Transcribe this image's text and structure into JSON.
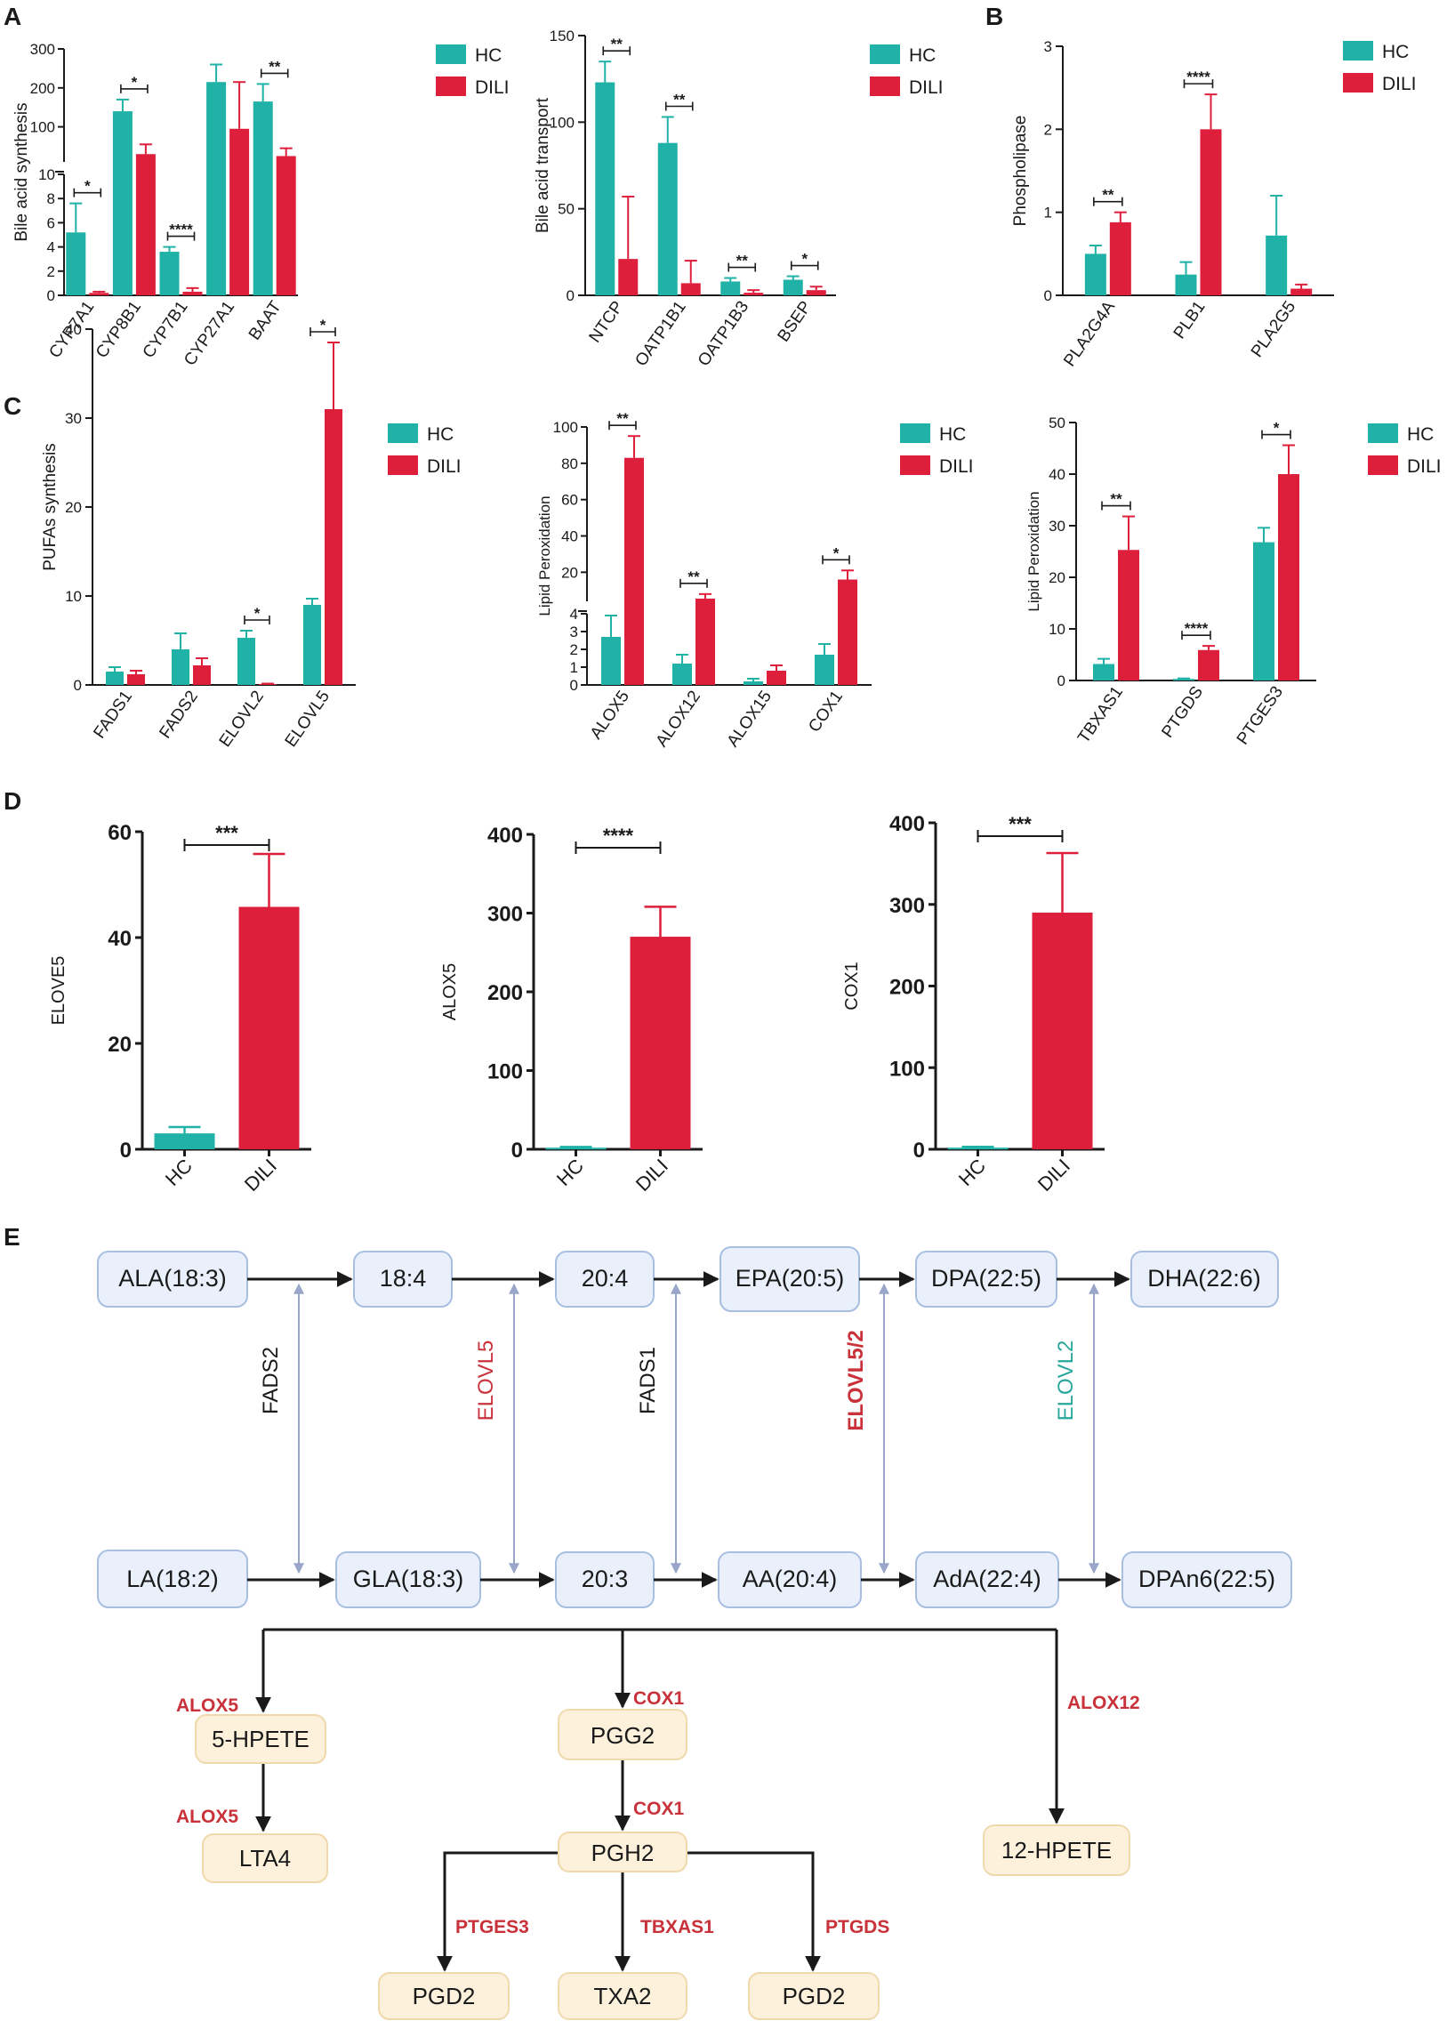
{
  "colors": {
    "hc": "#20b2a6",
    "dili": "#de1f3c",
    "ink": "#1a1a1a",
    "enzyme_red": "#c9323a",
    "enzyme_teal": "#27a79b",
    "bidir": "#9aa6c9"
  },
  "panel_labels": [
    "A",
    "B",
    "C",
    "D",
    "E"
  ],
  "legend": {
    "hc": "HC",
    "dili": "DILI"
  },
  "chart_data": [
    {
      "id": "a1",
      "type": "bar",
      "panel": "A",
      "ylabel": "Bile acid synthesis",
      "categories": [
        "CYP7A1",
        "CYP8B1",
        "CYP7B1",
        "CYP27A1",
        "BAAT"
      ],
      "series": [
        {
          "name": "HC",
          "values": [
            5.2,
            140,
            3.6,
            215,
            165
          ],
          "errors": [
            2.4,
            30,
            0.4,
            45,
            45
          ]
        },
        {
          "name": "DILI",
          "values": [
            0.2,
            30,
            0.3,
            95,
            25
          ],
          "errors": [
            0.1,
            25,
            0.3,
            120,
            20
          ]
        }
      ],
      "broken_axis": {
        "lower": [
          0,
          10
        ],
        "upper": [
          10,
          300
        ]
      },
      "lower_ticks": [
        0,
        2,
        4,
        6,
        8,
        10
      ],
      "upper_ticks": [
        100,
        200,
        300
      ],
      "significance": [
        {
          "index": 0,
          "mark": "*"
        },
        {
          "index": 1,
          "mark": "*"
        },
        {
          "index": 2,
          "mark": "****"
        },
        {
          "index": 4,
          "mark": "**"
        }
      ]
    },
    {
      "id": "a2",
      "type": "bar",
      "panel": "A",
      "ylabel": "Bile acid transport",
      "categories": [
        "NTCP",
        "OATP1B1",
        "OATP1B3",
        "BSEP"
      ],
      "series": [
        {
          "name": "HC",
          "values": [
            123,
            88,
            8,
            9
          ],
          "errors": [
            12,
            15,
            2,
            2
          ]
        },
        {
          "name": "DILI",
          "values": [
            21,
            7,
            1.5,
            3
          ],
          "errors": [
            36,
            13,
            1.5,
            2
          ]
        }
      ],
      "ylim": [
        0,
        150
      ],
      "ticks": [
        0,
        50,
        100,
        150
      ],
      "significance": [
        {
          "index": 0,
          "mark": "**"
        },
        {
          "index": 1,
          "mark": "**"
        },
        {
          "index": 2,
          "mark": "**"
        },
        {
          "index": 3,
          "mark": "*"
        }
      ]
    },
    {
      "id": "b",
      "type": "bar",
      "panel": "B",
      "ylabel": "Phospholipase",
      "categories": [
        "PLA2G4A",
        "PLB1",
        "PLA2G5"
      ],
      "series": [
        {
          "name": "HC",
          "values": [
            0.5,
            0.25,
            0.72
          ],
          "errors": [
            0.1,
            0.15,
            0.48
          ]
        },
        {
          "name": "DILI",
          "values": [
            0.88,
            2.0,
            0.08
          ],
          "errors": [
            0.12,
            0.42,
            0.05
          ]
        }
      ],
      "ylim": [
        0,
        3
      ],
      "ticks": [
        0,
        1,
        2,
        3
      ],
      "significance": [
        {
          "index": 0,
          "mark": "**"
        },
        {
          "index": 1,
          "mark": "****"
        }
      ]
    },
    {
      "id": "c1",
      "type": "bar",
      "panel": "C",
      "ylabel": "PUFAs synthesis",
      "categories": [
        "FADS1",
        "FADS2",
        "ELOVL2",
        "ELOVL5"
      ],
      "series": [
        {
          "name": "HC",
          "values": [
            1.5,
            4.0,
            5.3,
            9.0
          ],
          "errors": [
            0.5,
            1.8,
            0.8,
            0.7
          ]
        },
        {
          "name": "DILI",
          "values": [
            1.2,
            2.2,
            0.1,
            31
          ],
          "errors": [
            0.4,
            0.8,
            0.05,
            7.5
          ]
        }
      ],
      "ylim": [
        0,
        40
      ],
      "ticks": [
        0,
        10,
        20,
        30,
        40
      ],
      "significance": [
        {
          "index": 2,
          "mark": "*"
        },
        {
          "index": 3,
          "mark": "*"
        }
      ]
    },
    {
      "id": "c2",
      "type": "bar",
      "panel": "C",
      "ylabel": "Lipid Peroxidation",
      "categories": [
        "ALOX5",
        "ALOX12",
        "ALOX15",
        "COX1"
      ],
      "series": [
        {
          "name": "HC",
          "values": [
            2.7,
            1.2,
            0.2,
            1.7
          ],
          "errors": [
            1.2,
            0.5,
            0.15,
            0.6
          ]
        },
        {
          "name": "DILI",
          "values": [
            83,
            5.5,
            0.8,
            16
          ],
          "errors": [
            12,
            2.5,
            0.3,
            5
          ]
        }
      ],
      "broken_axis": {
        "lower": [
          0,
          4
        ],
        "upper": [
          4,
          100
        ]
      },
      "lower_ticks": [
        0,
        1,
        2,
        3,
        4
      ],
      "upper_ticks": [
        20,
        40,
        60,
        80,
        100
      ],
      "significance": [
        {
          "index": 0,
          "mark": "**"
        },
        {
          "index": 1,
          "mark": "**"
        },
        {
          "index": 3,
          "mark": "*"
        }
      ]
    },
    {
      "id": "c3",
      "type": "bar",
      "panel": "C",
      "ylabel": "Lipid Peroxidation",
      "categories": [
        "TBXAS1",
        "PTGDS",
        "PTGES3"
      ],
      "series": [
        {
          "name": "HC",
          "values": [
            3.2,
            0.3,
            26.8
          ],
          "errors": [
            1.0,
            0.1,
            2.8
          ]
        },
        {
          "name": "DILI",
          "values": [
            25.3,
            5.9,
            40
          ],
          "errors": [
            6.5,
            0.8,
            5.6
          ]
        }
      ],
      "ylim": [
        0,
        50
      ],
      "ticks": [
        0,
        10,
        20,
        30,
        40,
        50
      ],
      "significance": [
        {
          "index": 0,
          "mark": "**"
        },
        {
          "index": 1,
          "mark": "****"
        },
        {
          "index": 2,
          "mark": "*"
        }
      ]
    },
    {
      "id": "d1",
      "type": "bar",
      "panel": "D",
      "ylabel": "ELOVE5",
      "categories": [
        "HC",
        "DILI"
      ],
      "values": [
        3,
        45.8
      ],
      "errors": [
        1.2,
        10
      ],
      "ylim": [
        0,
        60
      ],
      "ticks": [
        0,
        20,
        40,
        60
      ],
      "significance_mark": "***"
    },
    {
      "id": "d2",
      "type": "bar",
      "panel": "D",
      "ylabel": "ALOX5",
      "categories": [
        "HC",
        "DILI"
      ],
      "values": [
        2,
        270
      ],
      "errors": [
        1,
        38
      ],
      "ylim": [
        0,
        400
      ],
      "ticks": [
        0,
        100,
        200,
        300,
        400
      ],
      "significance_mark": "****"
    },
    {
      "id": "d3",
      "type": "bar",
      "panel": "D",
      "ylabel": "COX1",
      "categories": [
        "HC",
        "DILI"
      ],
      "values": [
        2,
        290
      ],
      "errors": [
        1,
        73
      ],
      "ylim": [
        0,
        400
      ],
      "ticks": [
        0,
        100,
        200,
        300,
        400
      ],
      "significance_mark": "***"
    }
  ],
  "pathway": {
    "top_row": [
      "ALA(18:3)",
      "18:4",
      "20:4",
      "EPA(20:5)",
      "DPA(22:5)",
      "DHA(22:6)"
    ],
    "bottom_row": [
      "LA(18:2)",
      "GLA(18:3)",
      "20:3",
      "AA(20:4)",
      "AdA(22:4)",
      "DPAn6(22:5)"
    ],
    "enzymes": [
      "FADS2",
      "ELOVL5",
      "FADS1",
      "ELOVL5/2",
      "ELOVL2"
    ],
    "products": [
      "5-HPETE",
      "LTA4",
      "PGG2",
      "PGH2",
      "12-HPETE",
      "PGD2",
      "TXA2",
      "PGD2"
    ],
    "branch_enzymes": [
      "ALOX5",
      "ALOX5",
      "COX1",
      "COX1",
      "ALOX12",
      "PTGES3",
      "TBXAS1",
      "PTGDS"
    ]
  }
}
